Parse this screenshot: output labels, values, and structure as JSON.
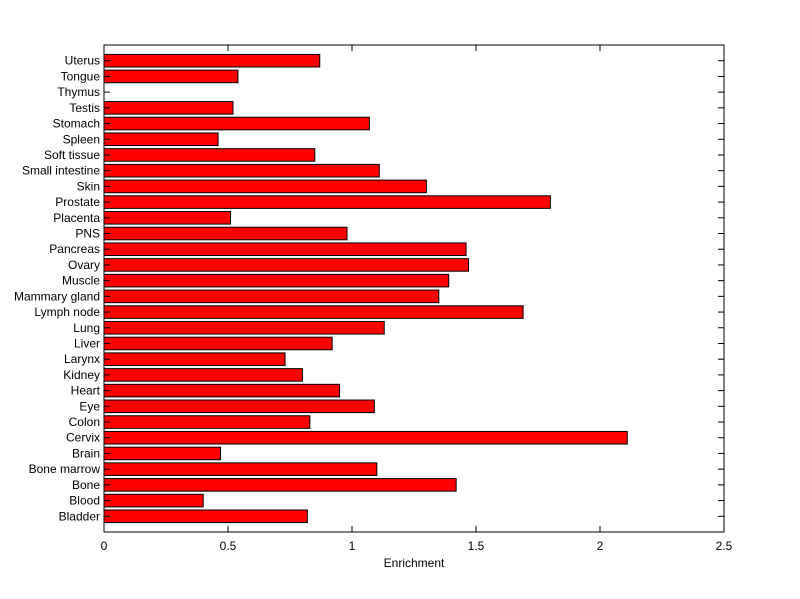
{
  "chart_data": {
    "type": "bar",
    "orientation": "horizontal",
    "title": "",
    "xlabel": "Enrichment",
    "ylabel": "",
    "xlim": [
      0,
      2.5
    ],
    "xticks": [
      0,
      0.5,
      1,
      1.5,
      2,
      2.5
    ],
    "xtick_labels": [
      "0",
      "0.5",
      "1",
      "1.5",
      "2",
      "2.5"
    ],
    "grid": false,
    "legend": "none",
    "bar_color": "#ff0000",
    "bar_edge_color": "#000000",
    "categories": [
      "Bladder",
      "Blood",
      "Bone",
      "Bone marrow",
      "Brain",
      "Cervix",
      "Colon",
      "Eye",
      "Heart",
      "Kidney",
      "Larynx",
      "Liver",
      "Lung",
      "Lymph node",
      "Mammary gland",
      "Muscle",
      "Ovary",
      "Pancreas",
      "PNS",
      "Placenta",
      "Prostate",
      "Skin",
      "Small intestine",
      "Soft tissue",
      "Spleen",
      "Stomach",
      "Testis",
      "Thymus",
      "Tongue",
      "Uterus"
    ],
    "values": [
      0.82,
      0.4,
      1.42,
      1.1,
      0.47,
      2.11,
      0.83,
      1.09,
      0.95,
      0.8,
      0.73,
      0.92,
      1.13,
      1.69,
      1.35,
      1.39,
      1.47,
      1.46,
      0.98,
      0.51,
      1.8,
      1.3,
      1.11,
      0.85,
      0.46,
      1.07,
      0.52,
      0,
      0.54,
      0.87
    ]
  }
}
